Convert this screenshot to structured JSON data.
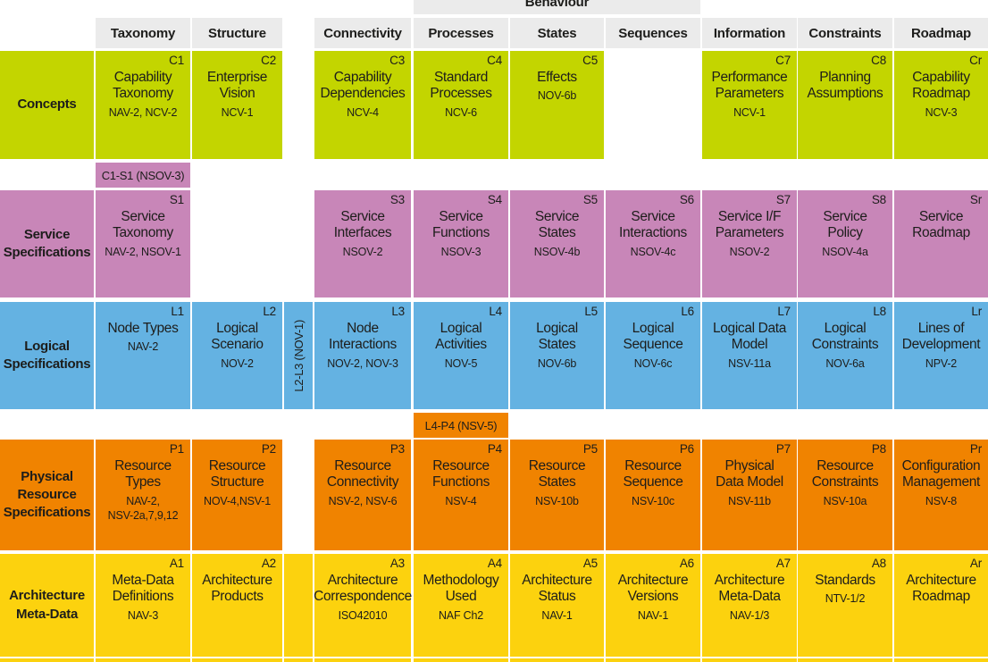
{
  "colors": {
    "concepts": "#c3d500",
    "service": "#c886b8",
    "logical": "#64b2e2",
    "physical": "#f08300",
    "metadata": "#fcd20e",
    "header_bg": "#ebebeb",
    "text": "#1d1d1b",
    "background": "#ffffff"
  },
  "behaviour_group": {
    "label": "Behaviour"
  },
  "columns": [
    {
      "id": "taxonomy",
      "label": "Taxonomy"
    },
    {
      "id": "structure",
      "label": "Structure"
    },
    {
      "id": "connectivity",
      "label": "Connectivity"
    },
    {
      "id": "processes",
      "label": "Processes"
    },
    {
      "id": "states",
      "label": "States"
    },
    {
      "id": "sequences",
      "label": "Sequences"
    },
    {
      "id": "information",
      "label": "Information"
    },
    {
      "id": "constraints",
      "label": "Constraints"
    },
    {
      "id": "roadmap",
      "label": "Roadmap"
    }
  ],
  "rows": [
    {
      "id": "concepts",
      "label": "Concepts",
      "cells": [
        {
          "col": "taxonomy",
          "code": "C1",
          "title": "Capability\nTaxonomy",
          "ref": "NAV-2, NCV-2"
        },
        {
          "col": "structure",
          "code": "C2",
          "title": "Enterprise\nVision",
          "ref": "NCV-1"
        },
        {
          "col": "connectivity",
          "code": "C3",
          "title": "Capability\nDependencies",
          "ref": "NCV-4"
        },
        {
          "col": "processes",
          "code": "C4",
          "title": "Standard\nProcesses",
          "ref": "NCV-6"
        },
        {
          "col": "states",
          "code": "C5",
          "title": "Effects",
          "ref": "NOV-6b"
        },
        {
          "col": "information",
          "code": "C7",
          "title": "Performance\nParameters",
          "ref": "NCV-1"
        },
        {
          "col": "constraints",
          "code": "C8",
          "title": "Planning\nAssumptions",
          "ref": ""
        },
        {
          "col": "roadmap",
          "code": "Cr",
          "title": "Capability\nRoadmap",
          "ref": "NCV-3"
        }
      ]
    },
    {
      "id": "service",
      "label": "Service\nSpecifications",
      "cells": [
        {
          "col": "taxonomy",
          "code": "S1",
          "title": "Service\nTaxonomy",
          "ref": "NAV-2, NSOV-1"
        },
        {
          "col": "connectivity",
          "code": "S3",
          "title": "Service\nInterfaces",
          "ref": "NSOV-2"
        },
        {
          "col": "processes",
          "code": "S4",
          "title": "Service\nFunctions",
          "ref": "NSOV-3"
        },
        {
          "col": "states",
          "code": "S5",
          "title": "Service\nStates",
          "ref": "NSOV-4b"
        },
        {
          "col": "sequences",
          "code": "S6",
          "title": "Service\nInteractions",
          "ref": "NSOV-4c"
        },
        {
          "col": "information",
          "code": "S7",
          "title": "Service I/F\nParameters",
          "ref": "NSOV-2"
        },
        {
          "col": "constraints",
          "code": "S8",
          "title": "Service\nPolicy",
          "ref": "NSOV-4a"
        },
        {
          "col": "roadmap",
          "code": "Sr",
          "title": "Service\nRoadmap",
          "ref": ""
        }
      ]
    },
    {
      "id": "logical",
      "label": "Logical\nSpecifications",
      "cells": [
        {
          "col": "taxonomy",
          "code": "L1",
          "title": "Node Types",
          "ref": "NAV-2"
        },
        {
          "col": "structure",
          "code": "L2",
          "title": "Logical\nScenario",
          "ref": "NOV-2"
        },
        {
          "col": "connectivity",
          "code": "L3",
          "title": "Node\nInteractions",
          "ref": "NOV-2, NOV-3"
        },
        {
          "col": "processes",
          "code": "L4",
          "title": "Logical\nActivities",
          "ref": "NOV-5"
        },
        {
          "col": "states",
          "code": "L5",
          "title": "Logical\nStates",
          "ref": "NOV-6b"
        },
        {
          "col": "sequences",
          "code": "L6",
          "title": "Logical\nSequence",
          "ref": "NOV-6c"
        },
        {
          "col": "information",
          "code": "L7",
          "title": "Logical Data\nModel",
          "ref": "NSV-11a"
        },
        {
          "col": "constraints",
          "code": "L8",
          "title": "Logical\nConstraints",
          "ref": "NOV-6a"
        },
        {
          "col": "roadmap",
          "code": "Lr",
          "title": "Lines of\nDevelopment",
          "ref": "NPV-2"
        }
      ]
    },
    {
      "id": "physical",
      "label": "Physical\nResource\nSpecifications",
      "cells": [
        {
          "col": "taxonomy",
          "code": "P1",
          "title": "Resource\nTypes",
          "ref": "NAV-2,\nNSV-2a,7,9,12"
        },
        {
          "col": "structure",
          "code": "P2",
          "title": "Resource\nStructure",
          "ref": "NOV-4,NSV-1"
        },
        {
          "col": "connectivity",
          "code": "P3",
          "title": "Resource\nConnectivity",
          "ref": "NSV-2, NSV-6"
        },
        {
          "col": "processes",
          "code": "P4",
          "title": "Resource\nFunctions",
          "ref": "NSV-4"
        },
        {
          "col": "states",
          "code": "P5",
          "title": "Resource\nStates",
          "ref": "NSV-10b"
        },
        {
          "col": "sequences",
          "code": "P6",
          "title": "Resource\nSequence",
          "ref": "NSV-10c"
        },
        {
          "col": "information",
          "code": "P7",
          "title": "Physical\nData Model",
          "ref": "NSV-11b"
        },
        {
          "col": "constraints",
          "code": "P8",
          "title": "Resource\nConstraints",
          "ref": "NSV-10a"
        },
        {
          "col": "roadmap",
          "code": "Pr",
          "title": "Configuration\nManagement",
          "ref": "NSV-8"
        }
      ]
    },
    {
      "id": "metadata",
      "label": "Architecture\nMeta-Data",
      "cells": [
        {
          "col": "taxonomy",
          "code": "A1",
          "title": "Meta-Data\nDefinitions",
          "ref": "NAV-3"
        },
        {
          "col": "structure",
          "code": "A2",
          "title": "Architecture\nProducts",
          "ref": ""
        },
        {
          "col": "spacer",
          "code": "",
          "title": "",
          "ref": ""
        },
        {
          "col": "connectivity",
          "code": "A3",
          "title": "Architecture\nCorrespondence",
          "ref": "ISO42010"
        },
        {
          "col": "processes",
          "code": "A4",
          "title": "Methodology\nUsed",
          "ref": "NAF Ch2"
        },
        {
          "col": "states",
          "code": "A5",
          "title": "Architecture\nStatus",
          "ref": "NAV-1"
        },
        {
          "col": "sequences",
          "code": "A6",
          "title": "Architecture\nVersions",
          "ref": "NAV-1"
        },
        {
          "col": "information",
          "code": "A7",
          "title": "Architecture\nMeta-Data",
          "ref": "NAV-1/3"
        },
        {
          "col": "constraints",
          "code": "A8",
          "title": "Standards",
          "ref": "NTV-1/2"
        },
        {
          "col": "roadmap",
          "code": "Ar",
          "title": "Architecture\nRoadmap",
          "ref": ""
        }
      ]
    }
  ],
  "connectors": [
    {
      "id": "c1-s1",
      "label": "C1-S1 (NSOV-3)",
      "color": "service",
      "col": "taxonomy",
      "orientation": "horizontal"
    },
    {
      "id": "l2-l3",
      "label": "L2-L3 (NOV-1)",
      "color": "logical",
      "col": "spacer",
      "orientation": "vertical"
    },
    {
      "id": "l4-p4",
      "label": "L4-P4 (NSV-5)",
      "color": "physical",
      "col": "processes",
      "orientation": "horizontal"
    }
  ]
}
